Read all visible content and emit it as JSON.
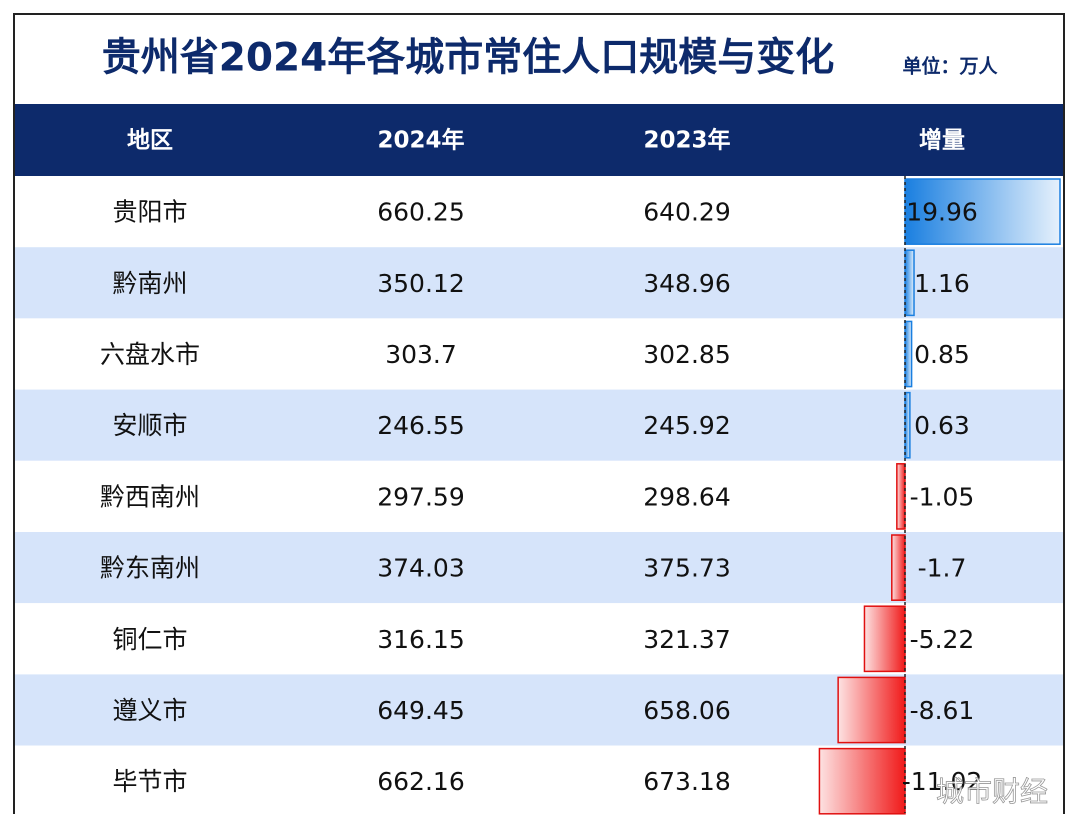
{
  "title": "贵州省2024年各城市常住人口规模与变化",
  "unit": "单位：万人",
  "table": {
    "header": [
      "地区",
      "2024年",
      "2023年",
      "增量"
    ],
    "rows": [
      [
        "贵阳市",
        660.25,
        640.29,
        19.96
      ],
      [
        "黔南州",
        350.12,
        348.96,
        1.16
      ],
      [
        "六盘水市",
        303.7,
        302.85,
        0.85
      ],
      [
        "安顺市",
        246.55,
        245.92,
        0.63
      ],
      [
        "黔西南州",
        297.59,
        298.64,
        -1.05
      ],
      [
        "黔东南州",
        374.03,
        375.73,
        -1.7
      ],
      [
        "铜仁市",
        316.15,
        321.37,
        -5.22
      ],
      [
        "遵义市",
        649.45,
        658.06,
        -8.61
      ],
      [
        "毕节市",
        662.16,
        673.18,
        -11.02
      ]
    ]
  },
  "watermark": "城市财经"
}
